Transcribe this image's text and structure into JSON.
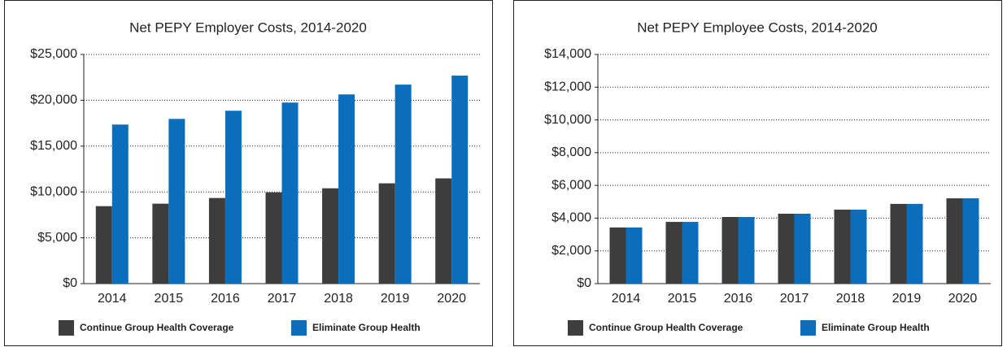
{
  "chart_data": [
    {
      "type": "bar",
      "title": "Net PEPY Employer Costs, 2014-2020",
      "categories": [
        "2014",
        "2015",
        "2016",
        "2017",
        "2018",
        "2019",
        "2020"
      ],
      "series": [
        {
          "name": "Continue Group Health Coverage",
          "color": "#3d3d3d",
          "values": [
            8450,
            8720,
            9340,
            9960,
            10400,
            10940,
            11480
          ]
        },
        {
          "name": "Eliminate Group Health",
          "color": "#0a6ebd",
          "values": [
            17350,
            17970,
            18860,
            19750,
            20640,
            21710,
            22690
          ]
        }
      ],
      "ylim": [
        0,
        25000
      ],
      "yticks": [
        {
          "value": 0,
          "label": "$0"
        },
        {
          "value": 5000,
          "label": "$5,000"
        },
        {
          "value": 10000,
          "label": "$10,000"
        },
        {
          "value": 15000,
          "label": "$15,000"
        },
        {
          "value": 20000,
          "label": "$20,000"
        },
        {
          "value": 25000,
          "label": "$25,000"
        }
      ],
      "grid": true,
      "legend": "bottom"
    },
    {
      "type": "bar",
      "title": "Net PEPY Employee Costs, 2014-2020",
      "categories": [
        "2014",
        "2015",
        "2016",
        "2017",
        "2018",
        "2019",
        "2020"
      ],
      "series": [
        {
          "name": "Continue Group Health Coverage",
          "color": "#3d3d3d",
          "values": [
            3430,
            3770,
            4070,
            4270,
            4520,
            4870,
            5210
          ]
        },
        {
          "name": "Eliminate Group Health",
          "color": "#0a6ebd",
          "values": [
            3430,
            3770,
            4070,
            4270,
            4520,
            4870,
            5210
          ]
        }
      ],
      "ylim": [
        0,
        14000
      ],
      "yticks": [
        {
          "value": 0,
          "label": "$0"
        },
        {
          "value": 2000,
          "label": "$2,000"
        },
        {
          "value": 4000,
          "label": "$4,000"
        },
        {
          "value": 6000,
          "label": "$6,000"
        },
        {
          "value": 8000,
          "label": "$8,000"
        },
        {
          "value": 10000,
          "label": "$10,000"
        },
        {
          "value": 12000,
          "label": "$12,000"
        },
        {
          "value": 14000,
          "label": "$14,000"
        }
      ],
      "grid": true,
      "legend": "bottom"
    }
  ]
}
